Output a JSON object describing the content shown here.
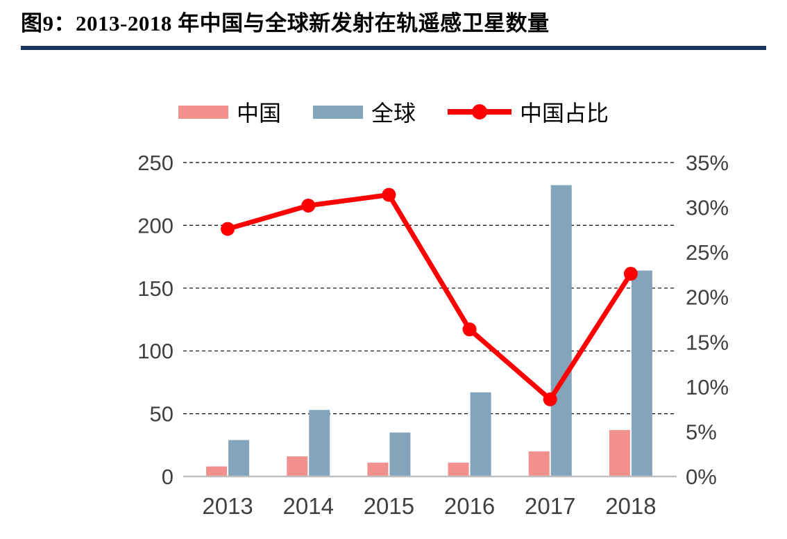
{
  "figure": {
    "title": "图9：2013-2018 年中国与全球新发射在轨遥感卫星数量"
  },
  "colors": {
    "divider": "#17375E",
    "china_bar": "#F2908D",
    "global_bar": "#84A4BC",
    "share_line": "#FF0000",
    "axis_text": "#404040",
    "baseline": "#BFBFBF",
    "gridline": "#000000"
  },
  "legend": [
    {
      "label": "中国",
      "type": "bar",
      "color": "#F2908D"
    },
    {
      "label": "全球",
      "type": "bar",
      "color": "#84A4BC"
    },
    {
      "label": "中国占比",
      "type": "line",
      "color": "#FF0000"
    }
  ],
  "chart_data": {
    "type": "bar",
    "subtype": "grouped bars with overlay line (dual axis)",
    "title": "图9：2013-2018 年中国与全球新发射在轨遥感卫星数量",
    "categories": [
      "2013",
      "2014",
      "2015",
      "2016",
      "2017",
      "2018"
    ],
    "series": [
      {
        "name": "中国",
        "type": "bar",
        "axis": "left",
        "color": "#F2908D",
        "values": [
          8,
          16,
          11,
          11,
          20,
          37
        ]
      },
      {
        "name": "全球",
        "type": "bar",
        "axis": "left",
        "color": "#84A4BC",
        "values": [
          29,
          53,
          35,
          67,
          232,
          164
        ]
      },
      {
        "name": "中国占比",
        "type": "line",
        "axis": "right",
        "color": "#FF0000",
        "values": [
          27.6,
          30.2,
          31.4,
          16.4,
          8.6,
          22.6
        ]
      }
    ],
    "left_axis": {
      "min": 0,
      "max": 250,
      "step": 50,
      "tick_labels": [
        "0",
        "50",
        "100",
        "150",
        "200",
        "250"
      ]
    },
    "right_axis": {
      "min": 0,
      "max": 35,
      "step": 5,
      "tick_labels": [
        "0%",
        "5%",
        "10%",
        "15%",
        "20%",
        "25%",
        "30%",
        "35%"
      ]
    },
    "grid": "dashed horizontal lines at left-axis ticks, solid gray baseline at 0",
    "legend_position": "top-center",
    "xlabel": "",
    "ylabel": ""
  }
}
